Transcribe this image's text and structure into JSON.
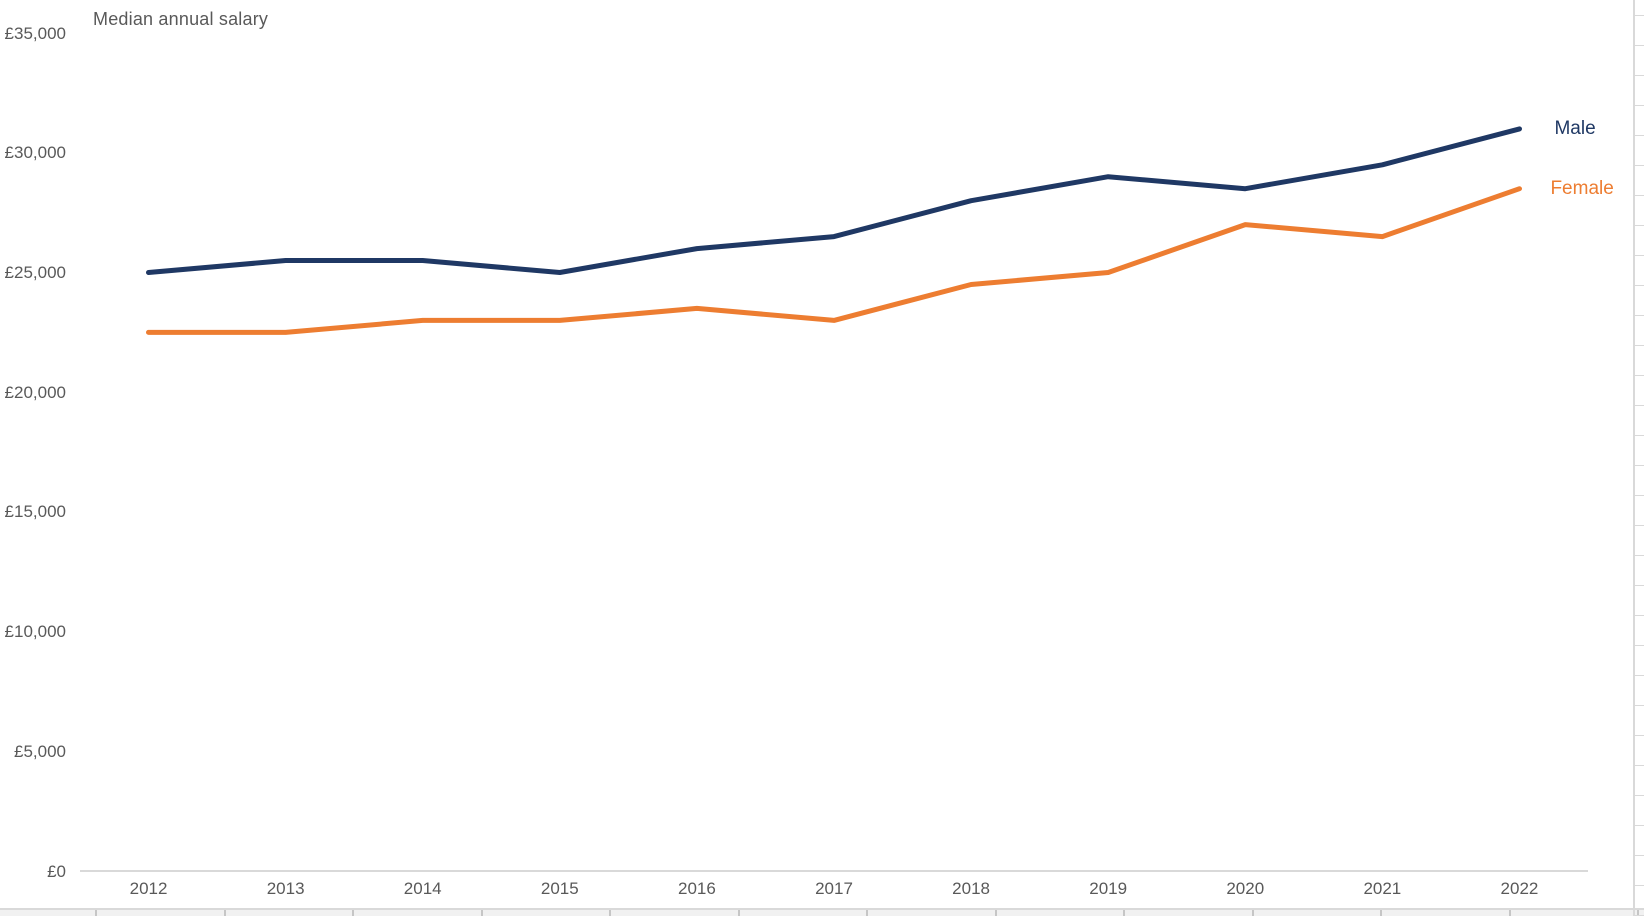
{
  "chart_data": {
    "type": "line",
    "title": "Median annual salary",
    "categories": [
      "2012",
      "2013",
      "2014",
      "2015",
      "2016",
      "2017",
      "2018",
      "2019",
      "2020",
      "2021",
      "2022"
    ],
    "series": [
      {
        "name": "Male",
        "color": "#1F3864",
        "values": [
          25000,
          25500,
          25500,
          25000,
          26000,
          26500,
          28000,
          29000,
          28500,
          29500,
          31000
        ]
      },
      {
        "name": "Female",
        "color": "#ED7D31",
        "values": [
          22500,
          22500,
          23000,
          23000,
          23500,
          23000,
          24500,
          25000,
          27000,
          26500,
          28500
        ]
      }
    ],
    "xlabel": "",
    "ylabel": "",
    "yaxis": {
      "min": 0,
      "max": 35000,
      "step": 5000,
      "tick_labels": [
        "£0",
        "£5,000",
        "£10,000",
        "£15,000",
        "£20,000",
        "£25,000",
        "£30,000",
        "£35,000"
      ]
    },
    "grid": false,
    "legend_position": "right-end-of-lines",
    "axis_line_color": "#D9D9D9",
    "text_color": "#595959"
  }
}
